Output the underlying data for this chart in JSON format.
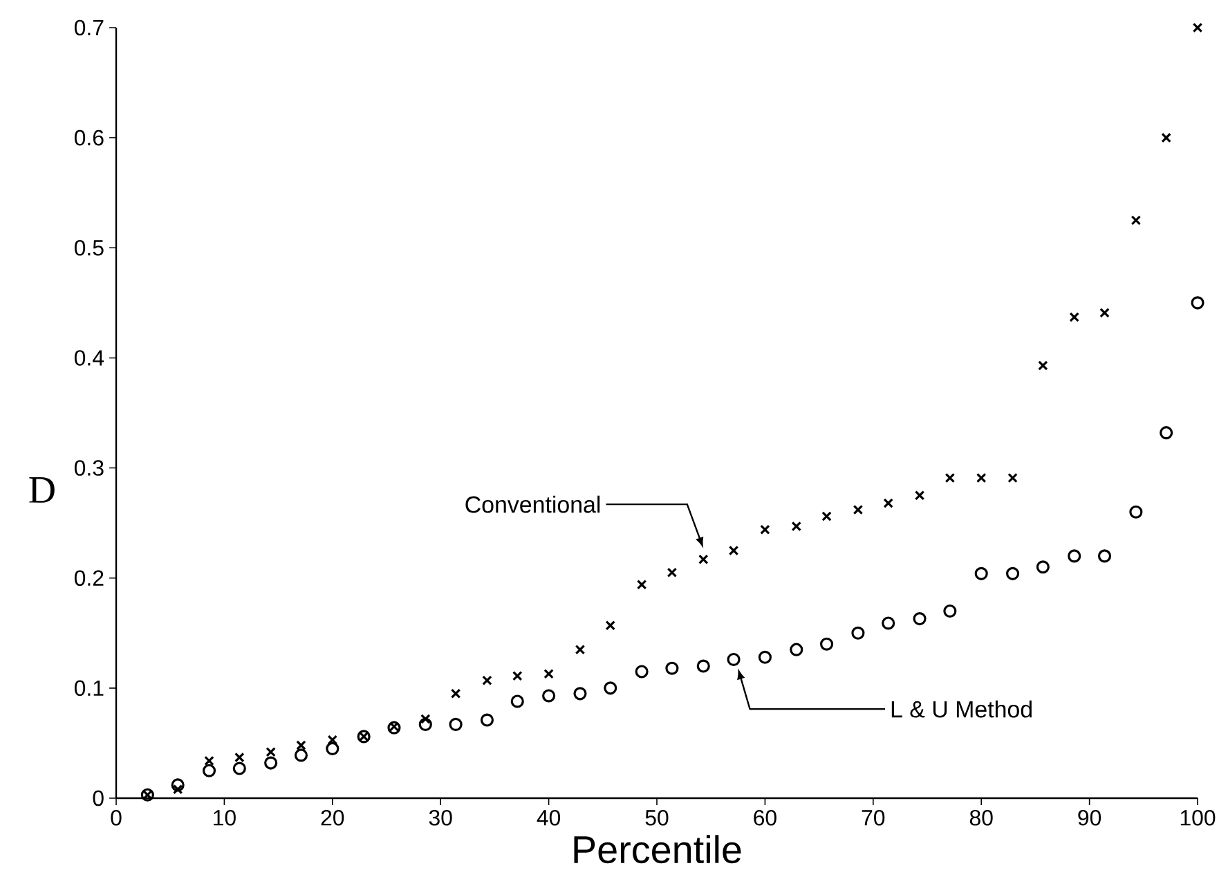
{
  "chart_data": {
    "type": "scatter",
    "xlabel": "Percentile",
    "ylabel": "D",
    "x": [
      2.9,
      5.7,
      8.6,
      11.4,
      14.3,
      17.1,
      20,
      22.9,
      25.7,
      28.6,
      31.4,
      34.3,
      37.1,
      40,
      42.9,
      45.7,
      48.6,
      51.4,
      54.3,
      57.1,
      60,
      62.9,
      65.7,
      68.6,
      71.4,
      74.3,
      77.1,
      80,
      82.9,
      85.7,
      88.6,
      91.4,
      94.3,
      97.1,
      100
    ],
    "series": [
      {
        "color": "#000000",
        "marker": "cross",
        "values": [
          0.003,
          0.008,
          0.034,
          0.037,
          0.042,
          0.048,
          0.053,
          0.056,
          0.065,
          0.072,
          0.095,
          0.107,
          0.111,
          0.113,
          0.135,
          0.157,
          0.194,
          0.205,
          0.217,
          0.225,
          0.244,
          0.247,
          0.256,
          0.262,
          0.268,
          0.275,
          0.291,
          0.291,
          0.291,
          0.393,
          0.437,
          0.441,
          0.525,
          0.6,
          0.7
        ]
      },
      {
        "color": "#000000",
        "marker": "circle",
        "values": [
          0.003,
          0.012,
          0.025,
          0.027,
          0.032,
          0.039,
          0.045,
          0.056,
          0.064,
          0.067,
          0.067,
          0.071,
          0.088,
          0.093,
          0.095,
          0.1,
          0.115,
          0.118,
          0.12,
          0.126,
          0.128,
          0.135,
          0.14,
          0.15,
          0.159,
          0.163,
          0.17,
          0.204,
          0.204,
          0.21,
          0.22,
          0.22,
          0.26,
          0.332,
          0.45
        ]
      }
    ],
    "xlim": [
      0,
      100
    ],
    "xticks": [
      0,
      10,
      20,
      30,
      40,
      50,
      60,
      70,
      80,
      90,
      100
    ],
    "ylim": [
      0,
      0.7
    ],
    "yticks": [
      0,
      0.1,
      0.2,
      0.3,
      0.4,
      0.5,
      0.6,
      0.7
    ],
    "annotations": [
      "Conventional",
      "L & U Method"
    ],
    "grid": false
  }
}
